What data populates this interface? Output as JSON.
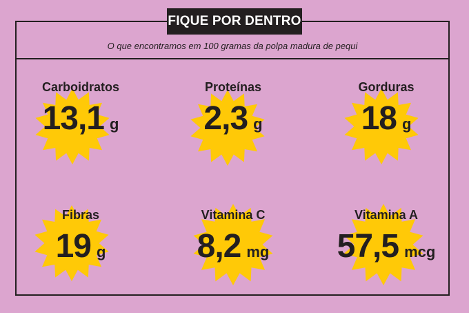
{
  "header": {
    "title": "FIQUE POR DENTRO",
    "subtitle": "O que encontramos em 100 gramas da polpa madura de pequi"
  },
  "colors": {
    "background": "#dca5cf",
    "burst": "#ffc907",
    "ink": "#231f20"
  },
  "nutrients": [
    {
      "label": "Carboidratos",
      "value": "13,1",
      "unit": "g"
    },
    {
      "label": "Proteínas",
      "value": "2,3",
      "unit": "g"
    },
    {
      "label": "Gorduras",
      "value": "18",
      "unit": "g"
    },
    {
      "label": "Fibras",
      "value": "19",
      "unit": "g"
    },
    {
      "label": "Vitamina C",
      "value": "8,2",
      "unit": "mg"
    },
    {
      "label": "Vitamina A",
      "value": "57,5",
      "unit": "mcg"
    }
  ]
}
